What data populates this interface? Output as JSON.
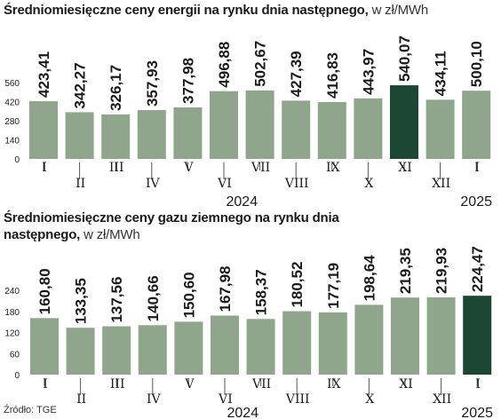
{
  "titles": [
    {
      "main": "Średniomiesięczne ceny energii na rynku dnia następnego,",
      "unit": " w zł/MWh"
    },
    {
      "main": "Średniomiesięczne ceny gazu ziemnego na rynku dnia następnego,",
      "unit": " w zł/MWh"
    }
  ],
  "source": "Źródło: TGE",
  "colors": {
    "bar": "#8fa68c",
    "highlight": "#1c4733",
    "axis": "#555555",
    "text": "#1a1a1a"
  },
  "chart_data": [
    {
      "type": "bar",
      "title": "Średniomiesięczne ceny energii na rynku dnia następnego, w zł/MWh",
      "categories": [
        "I",
        "II",
        "III",
        "IV",
        "V",
        "VI",
        "VII",
        "VIII",
        "IX",
        "X",
        "XI",
        "XII",
        "I"
      ],
      "values": [
        423.41,
        342.27,
        326.17,
        357.93,
        377.98,
        496.88,
        502.67,
        427.39,
        416.83,
        443.97,
        540.07,
        434.11,
        500.1
      ],
      "value_labels": [
        "423,41",
        "342,27",
        "326,17",
        "357,93",
        "377,98",
        "496,88",
        "502,67",
        "427,39",
        "416,83",
        "443,97",
        "540,07",
        "434,11",
        "500,10"
      ],
      "highlight_index": 10,
      "yticks": [
        0,
        140,
        280,
        420,
        560
      ],
      "ylim": [
        0,
        560
      ],
      "year_labels": [
        {
          "text": "2024",
          "index": 5.5
        },
        {
          "text": "2025",
          "index": 12
        }
      ]
    },
    {
      "type": "bar",
      "title": "Średniomiesięczne ceny gazu ziemnego na rynku dnia następnego, w zł/MWh",
      "categories": [
        "I",
        "II",
        "III",
        "IV",
        "V",
        "VI",
        "VII",
        "VIII",
        "IX",
        "X",
        "XI",
        "XII",
        "I"
      ],
      "values": [
        160.8,
        133.35,
        137.56,
        140.66,
        150.6,
        167.98,
        158.37,
        180.52,
        177.19,
        198.64,
        219.35,
        219.93,
        224.47
      ],
      "value_labels": [
        "160,80",
        "133,35",
        "137,56",
        "140,66",
        "150,60",
        "167,98",
        "158,37",
        "180,52",
        "177,19",
        "198,64",
        "219,35",
        "219,93",
        "224,47"
      ],
      "highlight_index": 12,
      "yticks": [
        0,
        60,
        120,
        180,
        240
      ],
      "ylim": [
        0,
        240
      ],
      "year_labels": [
        {
          "text": "2024",
          "index": 5.5
        },
        {
          "text": "2025",
          "index": 12
        }
      ]
    }
  ]
}
